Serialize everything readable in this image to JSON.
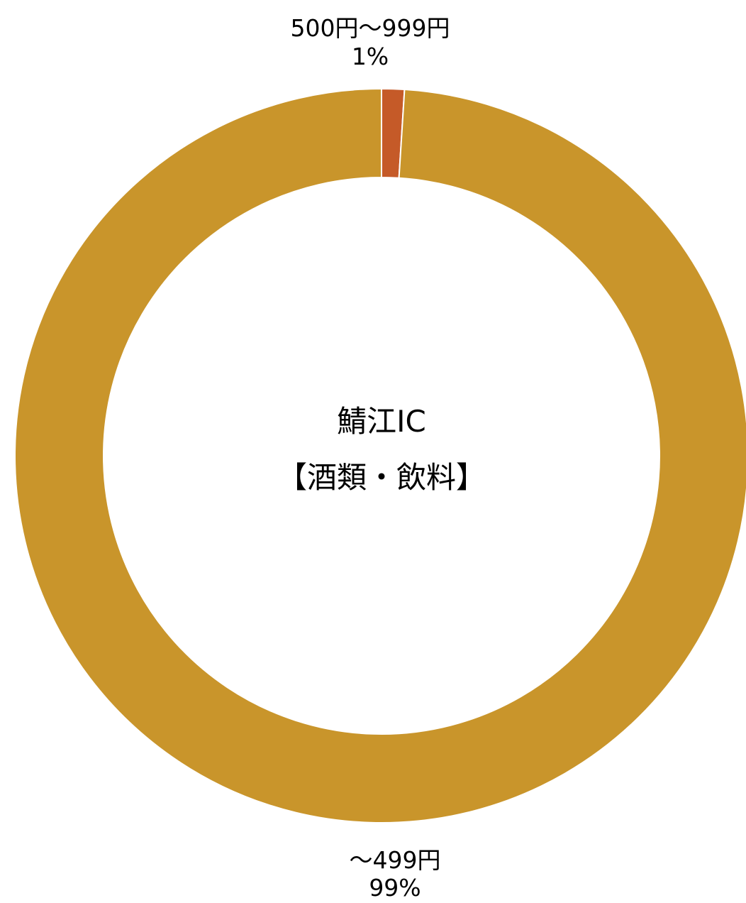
{
  "chart_data": {
    "type": "pie",
    "variant": "donut",
    "title": "鯖江IC",
    "subtitle": "【酒類・飲料】",
    "slices": [
      {
        "label": "500円～999円",
        "value": 1,
        "percent_label": "1%",
        "color": "#C55A28"
      },
      {
        "label": "～499円",
        "value": 99,
        "percent_label": "99%",
        "color": "#C9952B"
      }
    ],
    "start_angle_deg": 0,
    "direction": "clockwise",
    "slice_border_color": "#ffffff",
    "label_color": "#000000"
  }
}
